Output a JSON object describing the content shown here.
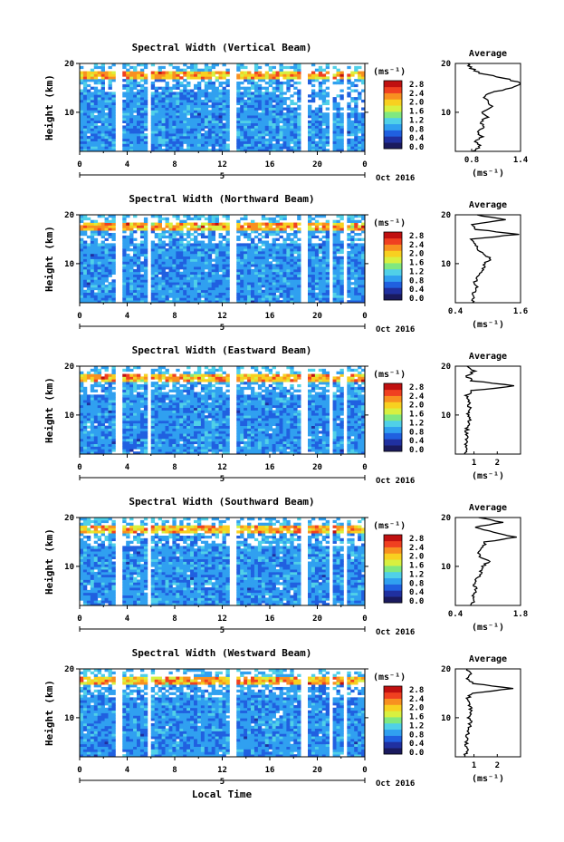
{
  "figure": {
    "xlabel": "Local Time",
    "ylabel": "Height (km)",
    "date_label": "Oct 2016",
    "day_label": "5",
    "unit_label": "(ms⁻¹)",
    "average_title": "Average",
    "colorbar_ticks": [
      "2.8",
      "2.4",
      "2.0",
      "1.6",
      "1.2",
      "0.8",
      "0.4",
      "0.0"
    ],
    "x_ticks": [
      "0",
      "4",
      "8",
      "12",
      "16",
      "20",
      "0"
    ],
    "y_ticks": [
      "20",
      "10"
    ],
    "colors": {
      "colormap": [
        "#1a1a5e",
        "#2030a0",
        "#2060e0",
        "#30a0f0",
        "#50d0e8",
        "#80e880",
        "#d8f040",
        "#f8d020",
        "#f89020",
        "#f04020",
        "#c01010"
      ],
      "profile_line": "#000000",
      "background": "#ffffff"
    }
  },
  "chart_data": [
    {
      "type": "heatmap",
      "title": "Spectral Width (Vertical Beam)",
      "xlabel": "Local Time",
      "ylabel": "Height (km)",
      "xlim": [
        0,
        24
      ],
      "ylim": [
        2,
        20
      ],
      "colorbar": {
        "label": "(ms⁻¹)",
        "range": [
          0.0,
          3.0
        ]
      },
      "data_gaps_hours": [
        [
          3.0,
          3.5
        ],
        [
          5.7,
          6.1
        ],
        [
          12.7,
          13.2
        ],
        [
          18.6,
          19.1
        ],
        [
          20.9,
          21.2
        ],
        [
          22.1,
          22.6
        ]
      ],
      "average_profile": {
        "title": "Average",
        "xlabel": "(ms⁻¹)",
        "xlim": [
          0.6,
          1.4
        ],
        "x_ticks": [
          "0.8",
          "1.4"
        ],
        "heights_km": [
          2,
          3,
          4,
          5,
          6,
          7,
          8,
          9,
          10,
          11,
          12,
          13,
          14,
          15,
          16,
          17,
          18,
          19,
          20
        ],
        "values": [
          0.82,
          0.9,
          0.86,
          0.92,
          0.88,
          0.95,
          0.9,
          1.0,
          0.92,
          1.05,
          1.0,
          0.95,
          1.02,
          1.3,
          1.4,
          1.2,
          0.9,
          0.8,
          0.75
        ]
      }
    },
    {
      "type": "heatmap",
      "title": "Spectral Width (Northward Beam)",
      "xlabel": "Local Time",
      "ylabel": "Height (km)",
      "xlim": [
        0,
        24
      ],
      "ylim": [
        2,
        20
      ],
      "colorbar": {
        "label": "(ms⁻¹)",
        "range": [
          0.0,
          3.0
        ]
      },
      "data_gaps_hours": [
        [
          3.0,
          3.5
        ],
        [
          5.7,
          6.1
        ],
        [
          12.7,
          13.2
        ],
        [
          18.6,
          19.1
        ],
        [
          20.9,
          21.2
        ],
        [
          22.1,
          22.6
        ]
      ],
      "average_profile": {
        "title": "Average",
        "xlabel": "(ms⁻¹)",
        "xlim": [
          0.4,
          1.6
        ],
        "x_ticks": [
          "0.4",
          "1.6"
        ],
        "heights_km": [
          2,
          3,
          4,
          5,
          6,
          7,
          8,
          9,
          10,
          11,
          12,
          13,
          14,
          15,
          16,
          17,
          18,
          19,
          20
        ],
        "values": [
          0.7,
          0.75,
          0.72,
          0.8,
          0.75,
          0.8,
          0.85,
          0.9,
          0.95,
          1.05,
          0.9,
          0.8,
          0.75,
          0.7,
          1.55,
          0.8,
          0.7,
          1.3,
          0.8
        ]
      }
    },
    {
      "type": "heatmap",
      "title": "Spectral Width (Eastward Beam)",
      "xlabel": "Local Time",
      "ylabel": "Height (km)",
      "xlim": [
        0,
        24
      ],
      "ylim": [
        2,
        20
      ],
      "colorbar": {
        "label": "(ms⁻¹)",
        "range": [
          0.0,
          3.0
        ]
      },
      "data_gaps_hours": [
        [
          3.0,
          3.5
        ],
        [
          5.7,
          6.1
        ],
        [
          12.7,
          13.2
        ],
        [
          18.6,
          19.1
        ],
        [
          20.9,
          21.2
        ],
        [
          22.1,
          22.6
        ]
      ],
      "average_profile": {
        "title": "Average",
        "xlabel": "(ms⁻¹)",
        "xlim": [
          0.2,
          3.0
        ],
        "x_ticks": [
          "1",
          "2"
        ],
        "heights_km": [
          2,
          3,
          4,
          5,
          6,
          7,
          8,
          9,
          10,
          11,
          12,
          13,
          14,
          15,
          16,
          17,
          18,
          19,
          20
        ],
        "values": [
          0.6,
          0.7,
          0.65,
          0.7,
          0.65,
          0.7,
          0.75,
          0.8,
          0.75,
          0.85,
          0.8,
          0.75,
          0.7,
          0.9,
          2.8,
          0.9,
          0.7,
          1.0,
          0.7
        ]
      }
    },
    {
      "type": "heatmap",
      "title": "Spectral Width (Southward Beam)",
      "xlabel": "Local Time",
      "ylabel": "Height (km)",
      "xlim": [
        0,
        24
      ],
      "ylim": [
        2,
        20
      ],
      "colorbar": {
        "label": "(ms⁻¹)",
        "range": [
          0.0,
          3.0
        ]
      },
      "data_gaps_hours": [
        [
          3.0,
          3.5
        ],
        [
          5.7,
          6.1
        ],
        [
          12.7,
          13.2
        ],
        [
          18.6,
          19.1
        ],
        [
          20.9,
          21.2
        ],
        [
          22.1,
          22.6
        ]
      ],
      "average_profile": {
        "title": "Average",
        "xlabel": "(ms⁻¹)",
        "xlim": [
          0.4,
          1.8
        ],
        "x_ticks": [
          "0.4",
          "1.8"
        ],
        "heights_km": [
          2,
          3,
          4,
          5,
          6,
          7,
          8,
          9,
          10,
          11,
          12,
          13,
          14,
          15,
          16,
          17,
          18,
          19,
          20
        ],
        "values": [
          0.75,
          0.8,
          0.78,
          0.85,
          0.8,
          0.85,
          0.9,
          0.95,
          1.0,
          1.1,
          0.95,
          0.9,
          1.0,
          1.05,
          1.7,
          1.2,
          0.8,
          1.4,
          0.9
        ]
      }
    },
    {
      "type": "heatmap",
      "title": "Spectral Width (Westward Beam)",
      "xlabel": "Local Time",
      "ylabel": "Height (km)",
      "xlim": [
        0,
        24
      ],
      "ylim": [
        2,
        20
      ],
      "colorbar": {
        "label": "(ms⁻¹)",
        "range": [
          0.0,
          3.0
        ]
      },
      "data_gaps_hours": [
        [
          3.0,
          3.5
        ],
        [
          5.7,
          6.1
        ],
        [
          12.7,
          13.2
        ],
        [
          18.6,
          19.1
        ],
        [
          20.9,
          21.2
        ],
        [
          22.1,
          22.6
        ]
      ],
      "average_profile": {
        "title": "Average",
        "xlabel": "(ms⁻¹)",
        "xlim": [
          0.2,
          3.0
        ],
        "x_ticks": [
          "1",
          "2"
        ],
        "heights_km": [
          2,
          3,
          4,
          5,
          6,
          7,
          8,
          9,
          10,
          11,
          12,
          13,
          14,
          15,
          16,
          17,
          18,
          19,
          20
        ],
        "values": [
          0.6,
          0.7,
          0.65,
          0.7,
          0.65,
          0.75,
          0.8,
          0.85,
          0.8,
          0.9,
          0.85,
          0.8,
          0.75,
          0.9,
          2.7,
          1.0,
          0.7,
          0.9,
          0.7
        ]
      }
    }
  ]
}
